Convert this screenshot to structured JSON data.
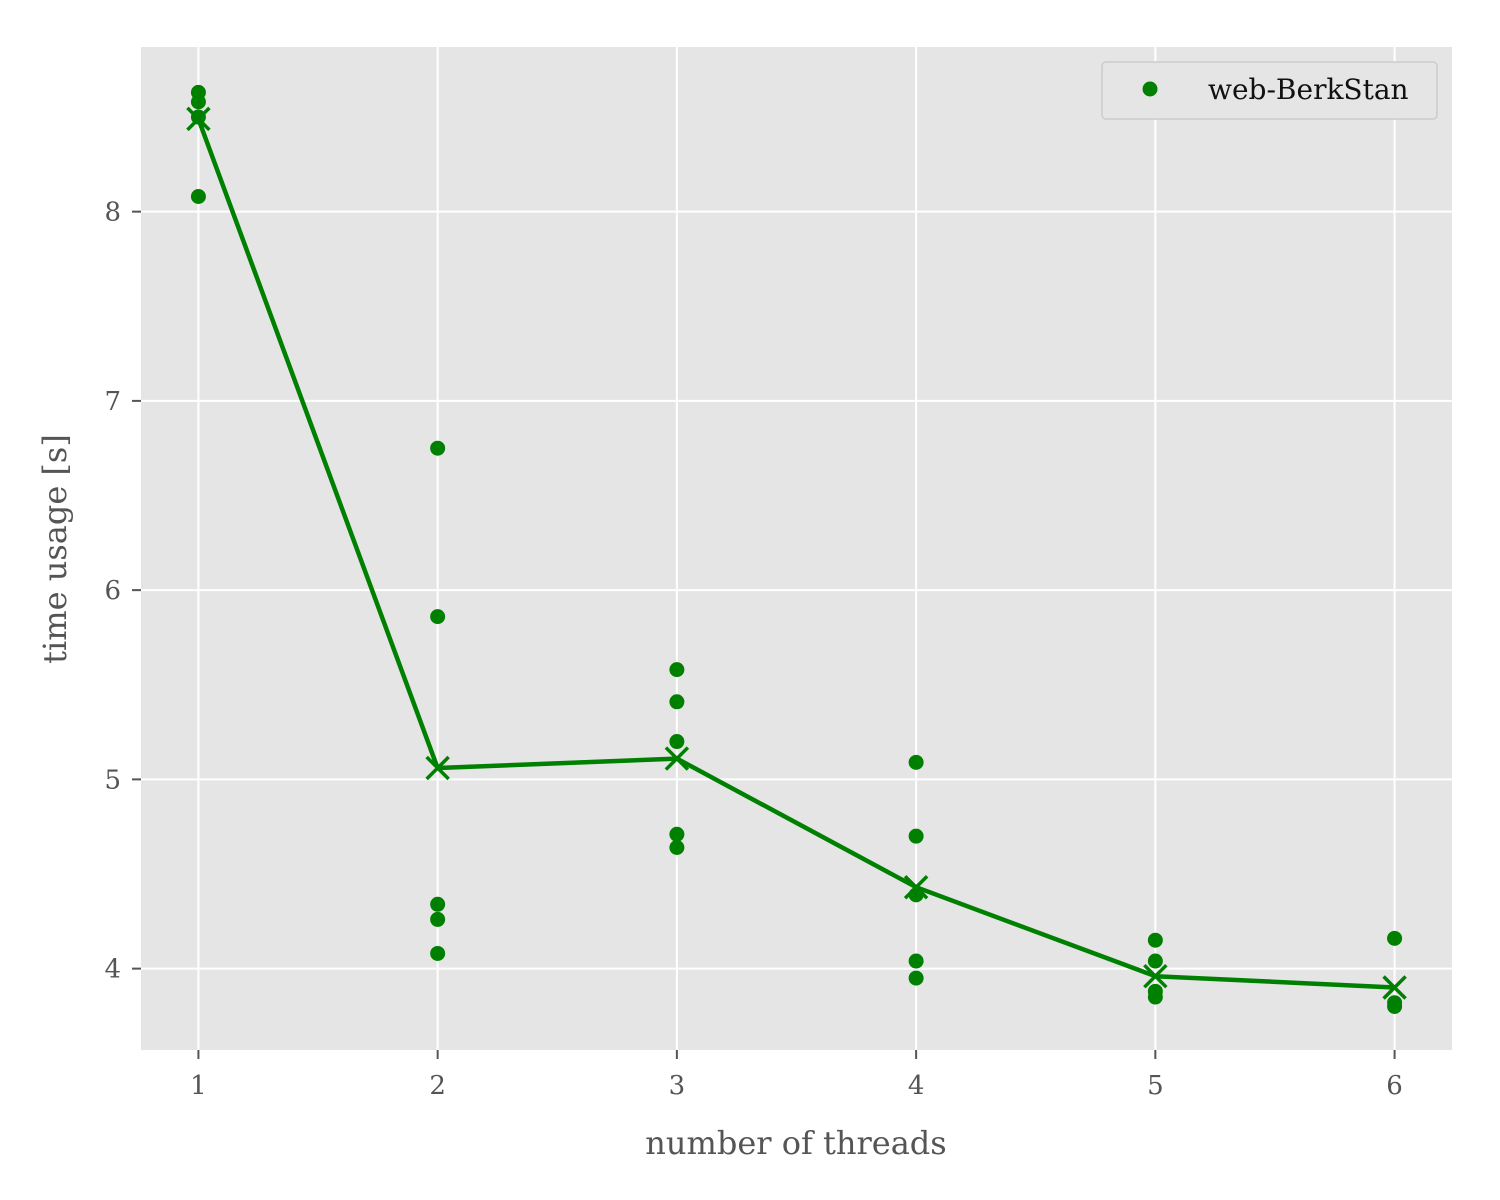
{
  "chart_data": {
    "type": "scatter",
    "xlabel": "number of threads",
    "ylabel": "time usage [s]",
    "xlim": [
      0.76,
      6.24
    ],
    "ylim": [
      3.57,
      8.87
    ],
    "x_ticks": [
      "1",
      "2",
      "3",
      "4",
      "5",
      "6"
    ],
    "y_ticks": [
      "4",
      "5",
      "6",
      "7",
      "8"
    ],
    "grid": true,
    "legend_position": "top-right",
    "colors": {
      "series": "#008000",
      "plot_background": "#e5e5e5",
      "grid": "#ffffff",
      "text": "#555555"
    },
    "series": [
      {
        "name": "web-BerkStan",
        "marker": "circle",
        "points": [
          {
            "x": 1,
            "y": 8.63
          },
          {
            "x": 1,
            "y": 8.58
          },
          {
            "x": 1,
            "y": 8.5
          },
          {
            "x": 1,
            "y": 8.08
          },
          {
            "x": 2,
            "y": 6.75
          },
          {
            "x": 2,
            "y": 5.86
          },
          {
            "x": 2,
            "y": 4.34
          },
          {
            "x": 2,
            "y": 4.26
          },
          {
            "x": 2,
            "y": 4.08
          },
          {
            "x": 3,
            "y": 5.58
          },
          {
            "x": 3,
            "y": 5.41
          },
          {
            "x": 3,
            "y": 5.2
          },
          {
            "x": 3,
            "y": 4.71
          },
          {
            "x": 3,
            "y": 4.64
          },
          {
            "x": 4,
            "y": 5.09
          },
          {
            "x": 4,
            "y": 4.7
          },
          {
            "x": 4,
            "y": 4.39
          },
          {
            "x": 4,
            "y": 4.04
          },
          {
            "x": 4,
            "y": 3.95
          },
          {
            "x": 5,
            "y": 4.15
          },
          {
            "x": 5,
            "y": 4.04
          },
          {
            "x": 5,
            "y": 3.88
          },
          {
            "x": 5,
            "y": 3.85
          },
          {
            "x": 6,
            "y": 4.16
          },
          {
            "x": 6,
            "y": 3.82
          },
          {
            "x": 6,
            "y": 3.8
          }
        ]
      },
      {
        "marker": "x",
        "line": true,
        "points": [
          {
            "x": 1,
            "y": 8.49
          },
          {
            "x": 2,
            "y": 5.06
          },
          {
            "x": 3,
            "y": 5.11
          },
          {
            "x": 4,
            "y": 4.43
          },
          {
            "x": 5,
            "y": 3.96
          },
          {
            "x": 6,
            "y": 3.9
          }
        ]
      }
    ]
  }
}
